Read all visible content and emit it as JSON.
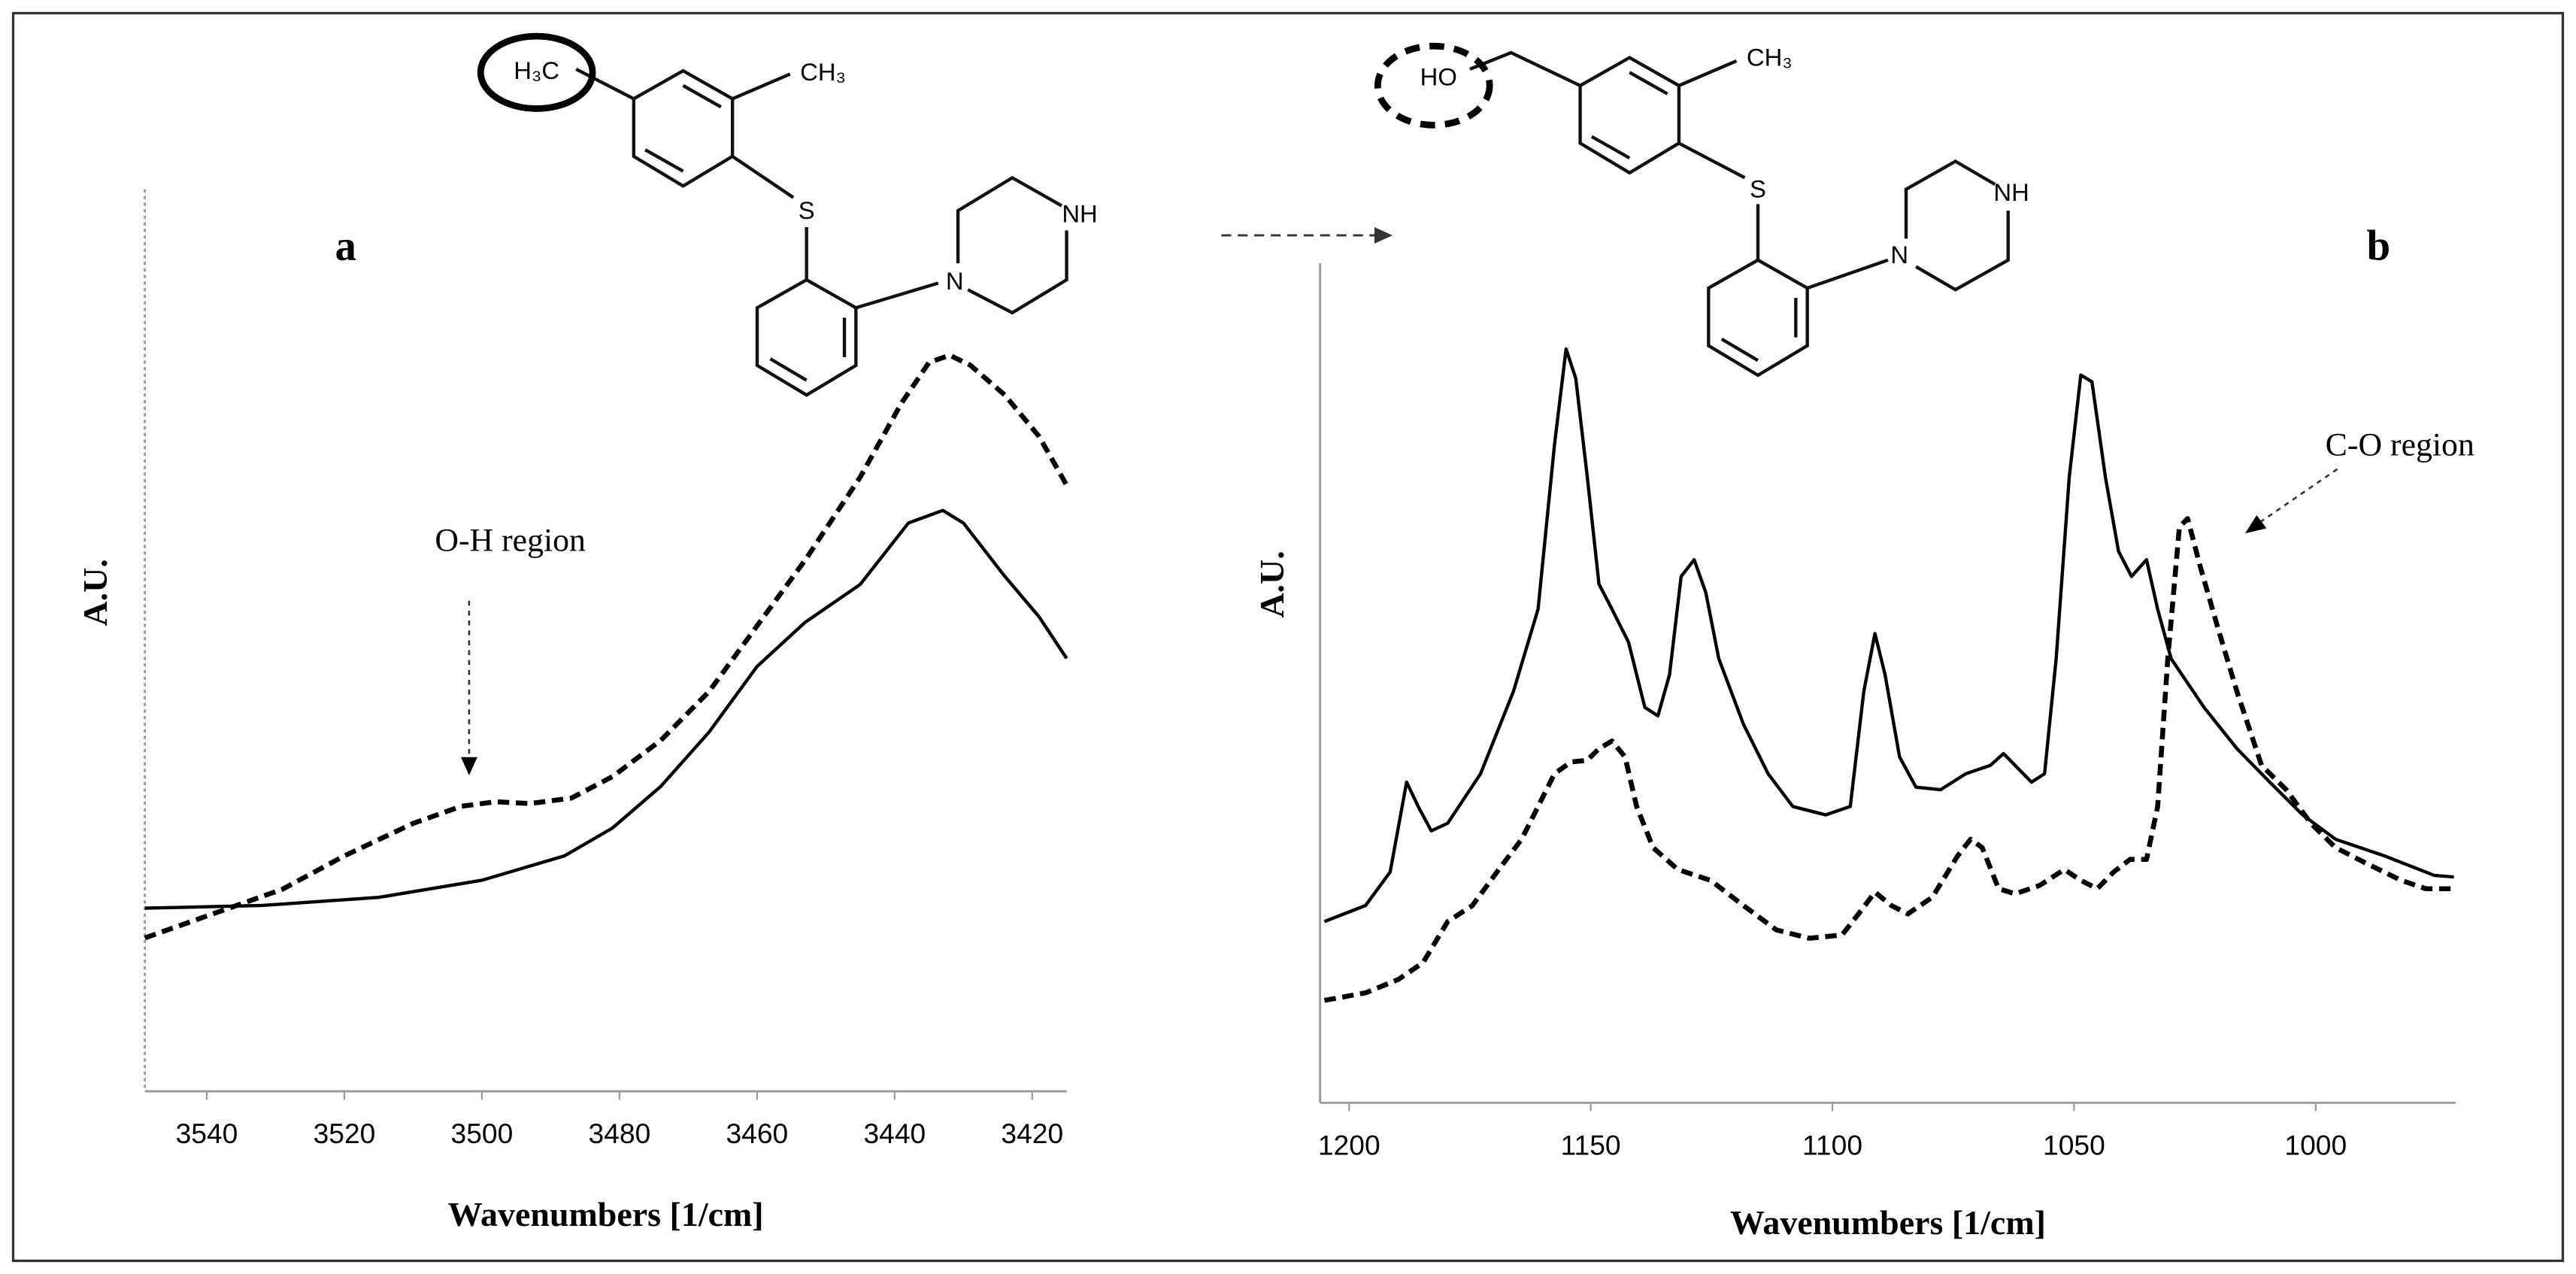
{
  "chart_data": [
    {
      "type": "line",
      "panel_label": "a",
      "xlabel": "Wavenumbers [1/cm]",
      "ylabel": "A.U.",
      "annotation": "O-H region",
      "structure_labels": [
        "H₃C",
        "CH₃",
        "S",
        "N",
        "NH"
      ],
      "xlim": [
        3549,
        3415
      ],
      "xticks": [
        3540,
        3520,
        3500,
        3480,
        3460,
        3440,
        3420
      ],
      "ylim": [
        0,
        100
      ],
      "series": [
        {
          "color": "#000000",
          "line_style": "solid",
          "x": [
            3549,
            3532,
            3515,
            3500,
            3488,
            3481,
            3474,
            3467,
            3460,
            3453,
            3445,
            3438,
            3433,
            3430,
            3424,
            3419,
            3415
          ],
          "values": [
            20.3,
            20.6,
            21.5,
            23.4,
            26.1,
            29.2,
            33.8,
            39.8,
            47.1,
            52.0,
            56.2,
            63.0,
            64.4,
            63.0,
            57.1,
            52.6,
            48.0
          ]
        },
        {
          "color": "#000000",
          "line_style": "dashed",
          "x": [
            3549,
            3539,
            3529,
            3520,
            3510,
            3503,
            3498,
            3493,
            3487,
            3481,
            3474,
            3467,
            3460,
            3453,
            3445,
            3439,
            3435,
            3432,
            3429,
            3424,
            3419,
            3415
          ],
          "values": [
            17.0,
            19.7,
            22.4,
            26.1,
            29.7,
            31.6,
            32.1,
            31.9,
            32.5,
            34.9,
            38.9,
            44.3,
            51.6,
            58.9,
            68.1,
            76.3,
            80.8,
            81.6,
            80.5,
            77.2,
            72.6,
            67.2
          ]
        }
      ]
    },
    {
      "type": "line",
      "panel_label": "b",
      "xlabel": "Wavenumbers [1/cm]",
      "ylabel": "A.U.",
      "annotation": "C-O region",
      "structure_labels": [
        "HO",
        "CH₃",
        "S",
        "N",
        "NH"
      ],
      "xlim": [
        1206,
        971
      ],
      "xticks": [
        1200,
        1150,
        1100,
        1050,
        1000
      ],
      "ylim": [
        0,
        100
      ],
      "series": [
        {
          "color": "#000000",
          "line_style": "solid",
          "x": [
            1205.1,
            1196.6,
            1191.5,
            1188.1,
            1185.7,
            1183.0,
            1179.6,
            1172.8,
            1166.0,
            1160.9,
            1157.5,
            1155.1,
            1153.1,
            1150.7,
            1148.3,
            1145.6,
            1142.2,
            1138.8,
            1136.1,
            1133.7,
            1131.3,
            1128.6,
            1126.2,
            1123.5,
            1118.4,
            1113.3,
            1108.2,
            1101.4,
            1096.3,
            1093.5,
            1091.2,
            1089.1,
            1086.1,
            1082.7,
            1077.6,
            1072.4,
            1067.3,
            1064.6,
            1062.2,
            1058.8,
            1056.1,
            1053.7,
            1051.0,
            1048.6,
            1046.3,
            1043.5,
            1040.8,
            1038.1,
            1035.0,
            1032.7,
            1029.9,
            1023.1,
            1016.3,
            1009.5,
            1002.7,
            995.9,
            985.7,
            975.5,
            971.4
          ],
          "values": [
            21.6,
            23.5,
            27.5,
            38.2,
            35.3,
            32.4,
            33.3,
            39.2,
            49.0,
            58.8,
            78.4,
            89.8,
            86.3,
            74.5,
            61.8,
            58.8,
            54.9,
            47.1,
            46.1,
            51.0,
            62.7,
            64.7,
            60.8,
            52.9,
            45.1,
            39.2,
            35.3,
            34.3,
            35.3,
            49.0,
            55.9,
            51.0,
            41.2,
            37.6,
            37.3,
            39.2,
            40.2,
            41.6,
            40.2,
            38.2,
            39.2,
            52.9,
            74.5,
            86.7,
            85.9,
            74.5,
            65.7,
            62.7,
            64.7,
            58.8,
            52.9,
            47.1,
            42.2,
            38.2,
            34.3,
            31.4,
            29.4,
            27.1,
            26.9
          ]
        },
        {
          "color": "#000000",
          "line_style": "dashed",
          "x": [
            1205.1,
            1196.6,
            1189.8,
            1184.7,
            1179.6,
            1174.5,
            1169.4,
            1164.3,
            1160.9,
            1157.5,
            1154.1,
            1150.7,
            1148.3,
            1145.6,
            1142.9,
            1140.5,
            1137.1,
            1132.0,
            1125.2,
            1118.4,
            1111.6,
            1104.8,
            1098.0,
            1094.6,
            1091.2,
            1087.8,
            1084.4,
            1079.3,
            1074.1,
            1071.4,
            1069.0,
            1065.6,
            1062.2,
            1057.1,
            1052.0,
            1048.6,
            1045.2,
            1041.8,
            1038.4,
            1035.0,
            1032.7,
            1030.6,
            1028.2,
            1026.5,
            1023.8,
            1020.4,
            1016.3,
            1011.2,
            1006.1,
            1001.0,
            995.9,
            989.1,
            982.3,
            977.2,
            971.4
          ],
          "values": [
            12.2,
            13.1,
            14.7,
            16.7,
            21.6,
            23.5,
            27.5,
            31.4,
            35.3,
            39.2,
            40.6,
            40.8,
            42.2,
            43.1,
            41.2,
            35.3,
            30.4,
            27.8,
            26.5,
            23.5,
            20.6,
            19.6,
            20.0,
            22.5,
            25.1,
            23.5,
            22.5,
            24.5,
            29.4,
            31.4,
            30.4,
            25.5,
            24.9,
            25.9,
            27.8,
            26.5,
            25.5,
            27.5,
            29.0,
            29.0,
            35.3,
            52.9,
            68.6,
            69.6,
            63.7,
            56.9,
            49.0,
            40.2,
            37.3,
            33.3,
            30.4,
            28.4,
            26.5,
            25.5,
            25.5
          ]
        }
      ]
    }
  ]
}
